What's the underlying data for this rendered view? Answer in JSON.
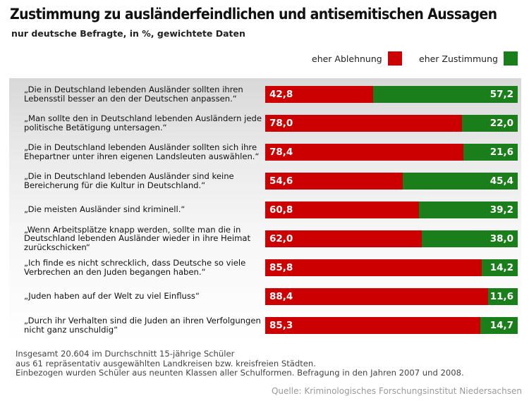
{
  "title": "Zustimmung zu ausländerfeindlichen und antisemitischen Aussagen",
  "subtitle": "nur deutsche Befragte, in %, gewichtete Daten",
  "colors": {
    "rejection": "#cc0000",
    "agreement": "#1a7f1a"
  },
  "chart_data": {
    "type": "bar",
    "orientation": "horizontal",
    "stacked": true,
    "normalized_to": 100,
    "title": "Zustimmung zu ausländerfeindlichen und antisemitischen Aussagen",
    "subtitle": "nur deutsche Befragte, in %, gewichtete Daten",
    "legend": [
      {
        "name": "eher Ablehnung",
        "color": "#cc0000"
      },
      {
        "name": "eher Zustimmung",
        "color": "#1a7f1a"
      }
    ],
    "legend_position": "top-right",
    "categories": [
      "„Die in Deutschland lebenden Ausländer sollten ihren Lebensstil besser an den der Deutschen anpassen.“",
      "„Man sollte den in Deutschland lebenden Ausländern jede politische Betätigung untersagen.“",
      "„Die in Deutschland lebenden Ausländer sollten sich ihre Ehepartner unter ihren eigenen Landsleuten auswählen.“",
      "„Die in Deutschland lebenden Ausländer sind keine Bereicherung für die Kultur in Deutschland.“",
      "„Die meisten Ausländer sind kriminell.“",
      "„Wenn Arbeitsplätze knapp werden, sollte man die in Deutschland lebenden Ausländer wieder in ihre Heimat zurückschicken“",
      "„Ich finde es nicht schrecklich, dass Deutsche so viele Verbrechen an den Juden begangen haben.“",
      "„Juden haben auf der Welt zu viel Einfluss“",
      "„Durch ihr Verhalten sind die Juden an ihren Verfolgungen nicht ganz unschuldig“"
    ],
    "series": [
      {
        "name": "eher Ablehnung",
        "values": [
          42.8,
          78.0,
          78.4,
          54.6,
          60.8,
          62.0,
          85.8,
          88.4,
          85.3
        ],
        "labels": [
          "42,8",
          "78,0",
          "78,4",
          "54,6",
          "60,8",
          "62,0",
          "85,8",
          "88,4",
          "85,3"
        ]
      },
      {
        "name": "eher Zustimmung",
        "values": [
          57.2,
          22.0,
          21.6,
          45.4,
          39.2,
          38.0,
          14.2,
          11.6,
          14.7
        ],
        "labels": [
          "57,2",
          "22,0",
          "21,6",
          "45,4",
          "39,2",
          "38,0",
          "14,2",
          "11,6",
          "14,7"
        ]
      }
    ]
  },
  "footnote": [
    "Insgesamt 20.604 im Durchschnitt 15-jährige Schüler",
    "aus 61 repräsentativ ausgewählten Landkreisen bzw. kreisfreien Städten.",
    "Einbezogen wurden Schüler aus neunten Klassen aller Schulformen. Befragung in den Jahren 2007 und 2008."
  ],
  "source": "Quelle: Kriminologisches Forschungsinstitut Niedersachsen"
}
